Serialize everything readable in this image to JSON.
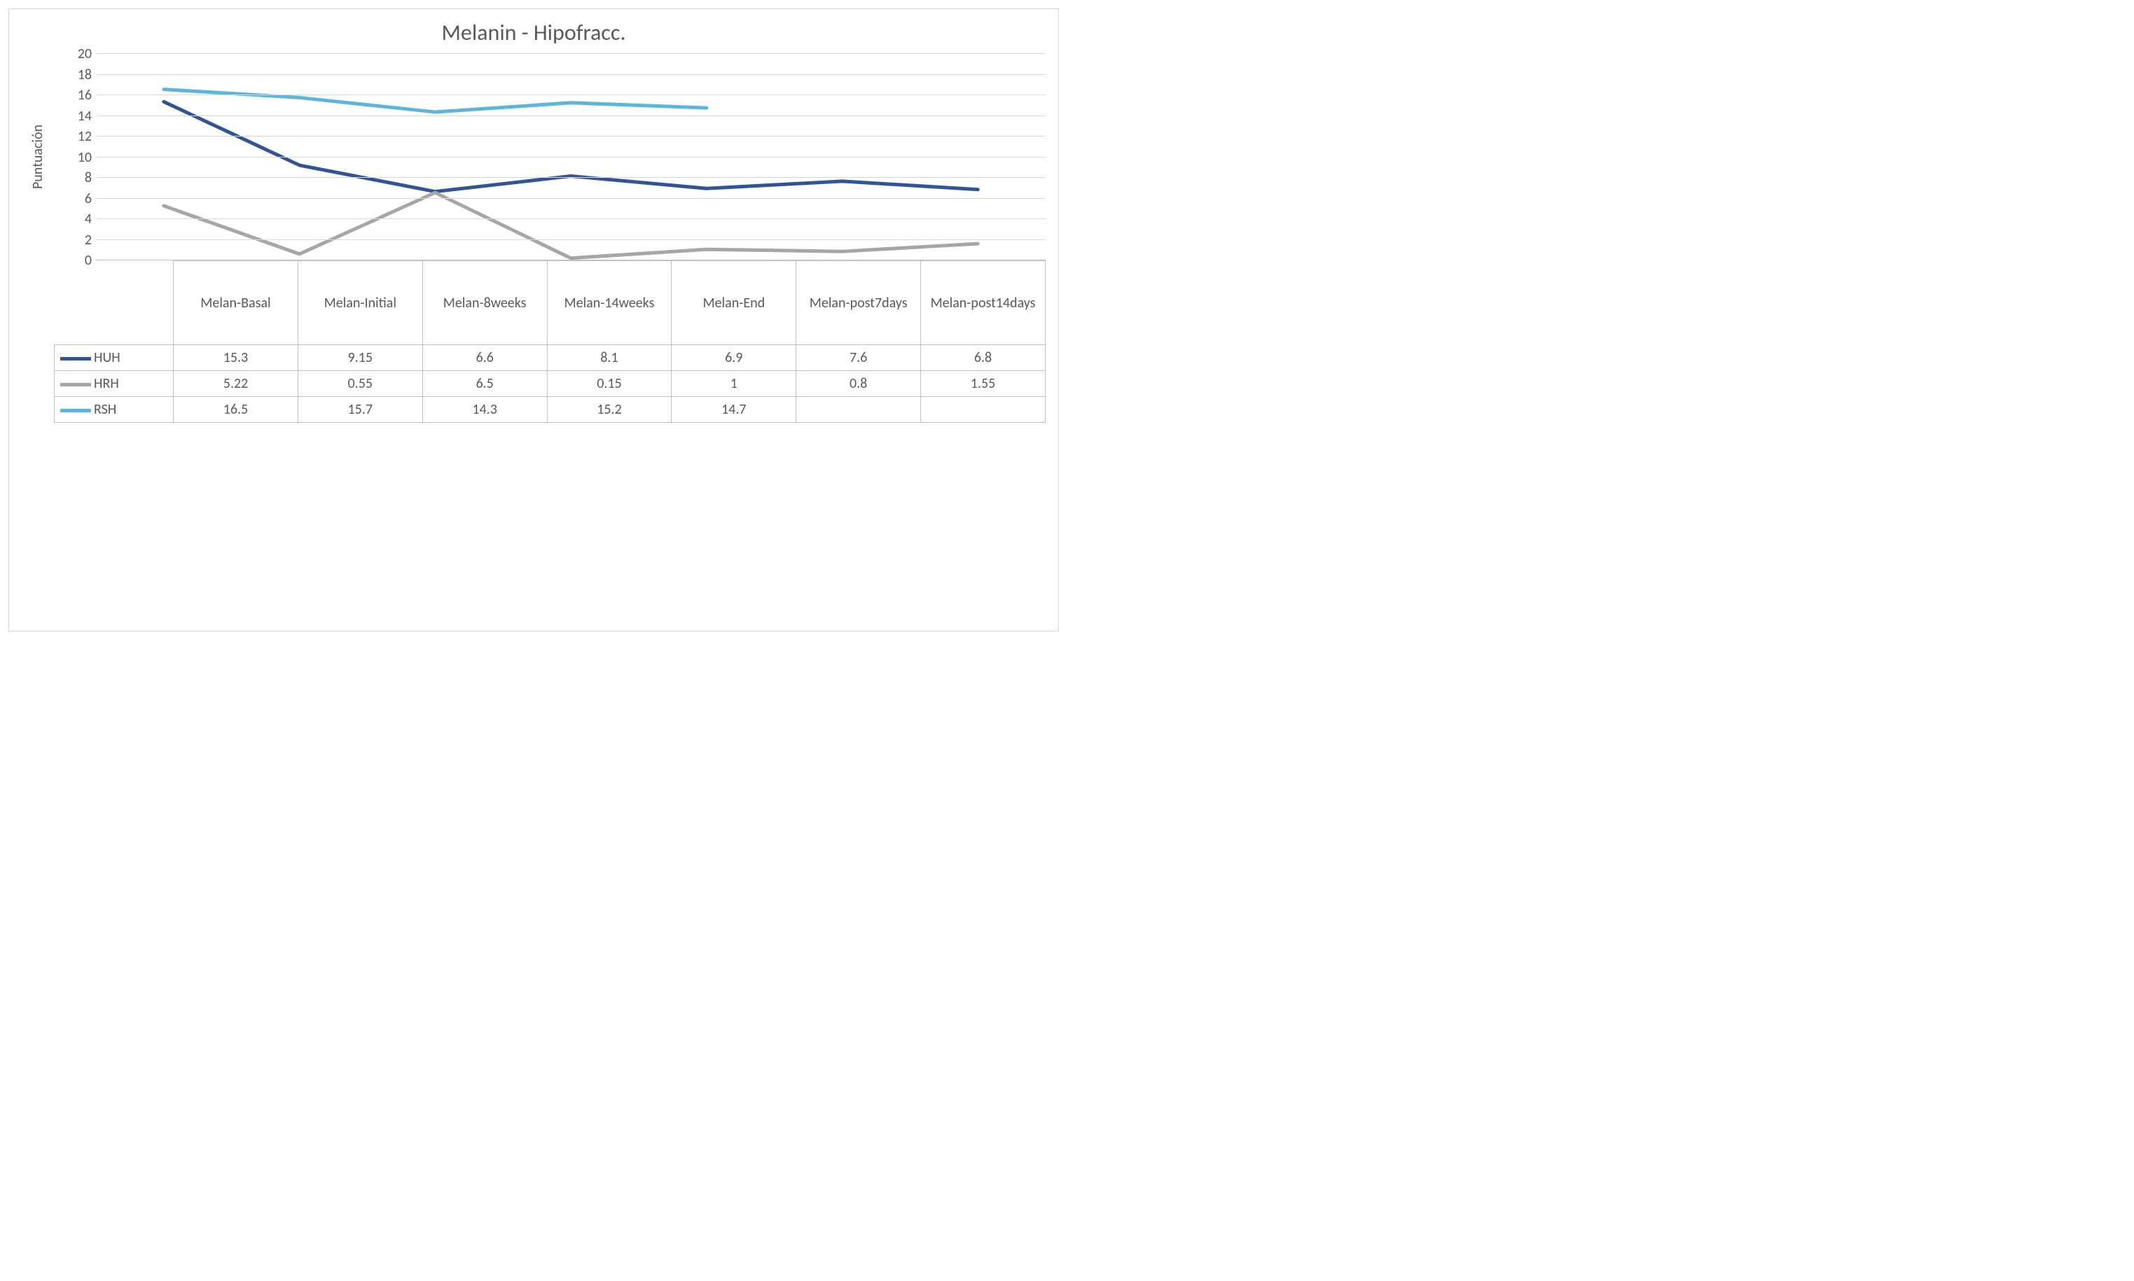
{
  "chart": {
    "type": "line",
    "title": "Melanin - Hipofracc.",
    "title_fontsize": 32,
    "title_color": "#595959",
    "yaxis_title": "Puntuación",
    "yaxis_title_fontsize": 20,
    "label_fontsize": 20,
    "tick_fontsize": 20,
    "table_fontsize": 20,
    "background_color": "#ffffff",
    "frame_border_color": "#d9d9d9",
    "grid_color": "#d9d9d9",
    "axis_line_color": "#bfbfbf",
    "text_color": "#595959",
    "ylim": [
      0,
      20
    ],
    "ytick_step": 2,
    "yticks": [
      0,
      2,
      4,
      6,
      8,
      10,
      12,
      14,
      16,
      18,
      20
    ],
    "line_width": 5,
    "categories": [
      "Melan-Basal",
      "Melan-Initial",
      "Melan-8weeks",
      "Melan-14weeks",
      "Melan-End",
      "Melan-post7days",
      "Melan-post14days"
    ],
    "series": [
      {
        "name": "HUH",
        "color": "#2f5597",
        "values": [
          15.3,
          9.15,
          6.6,
          8.1,
          6.9,
          7.6,
          6.8
        ]
      },
      {
        "name": "HRH",
        "color": "#a6a6a6",
        "values": [
          5.22,
          0.55,
          6.5,
          0.15,
          1,
          0.8,
          1.55
        ]
      },
      {
        "name": "RSH",
        "color": "#5fb4df",
        "values": [
          16.5,
          15.7,
          14.3,
          15.2,
          14.7,
          null,
          null
        ]
      }
    ]
  }
}
